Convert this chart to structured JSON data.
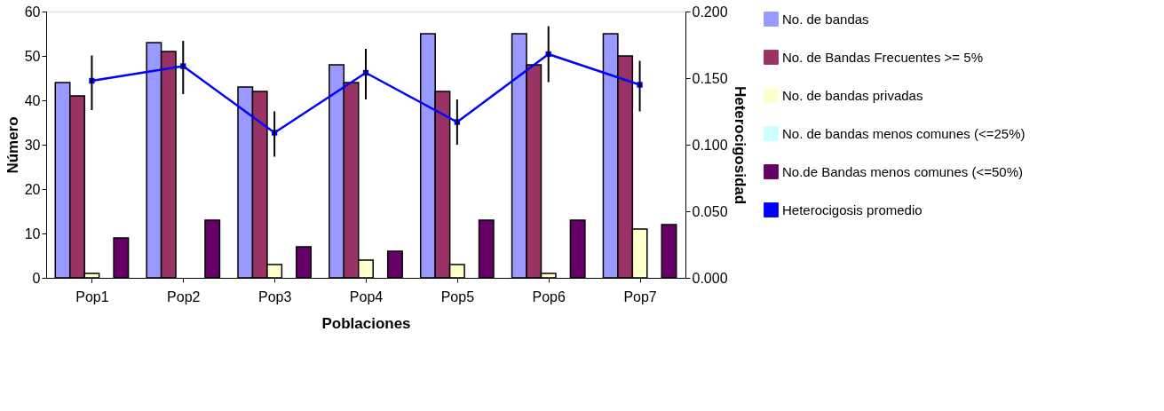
{
  "chart_data": {
    "type": "bar",
    "xlabel": "Poblaciones",
    "ylabel": "Número",
    "y2label": "Heterocigosidad",
    "categories": [
      "Pop1",
      "Pop2",
      "Pop3",
      "Pop4",
      "Pop5",
      "Pop6",
      "Pop7"
    ],
    "series": [
      {
        "name": "No. de bandas",
        "color": "#9999ff",
        "values": [
          44,
          53,
          43,
          48,
          55,
          55,
          55
        ]
      },
      {
        "name": "No.  de  Bandas Frecuentes >= 5%",
        "color": "#993366",
        "values": [
          41,
          51,
          42,
          44,
          42,
          48,
          50
        ]
      },
      {
        "name": "No. de bandas privadas",
        "color": "#ffffcc",
        "values": [
          1,
          0,
          3,
          4,
          3,
          1,
          11
        ]
      },
      {
        "name": "No. de bandas menos comunes (<=25%)",
        "color": "#ccffff",
        "values": [
          0,
          0,
          0,
          0,
          0,
          0,
          0
        ]
      },
      {
        "name": "No.de Bandas menos comunes (<=50%)",
        "color": "#660066",
        "values": [
          9,
          13,
          7,
          6,
          13,
          13,
          12
        ]
      },
      {
        "name": "Heterocigosis promedio",
        "color": "#0000ff",
        "type": "line",
        "axis": "y2",
        "marker": "square",
        "values": [
          0.148,
          0.159,
          0.109,
          0.154,
          0.117,
          0.168,
          0.145
        ],
        "errors": [
          [
            0.126,
            0.167
          ],
          [
            0.138,
            0.178
          ],
          [
            0.091,
            0.125
          ],
          [
            0.134,
            0.172
          ],
          [
            0.1,
            0.134
          ],
          [
            0.147,
            0.189
          ],
          [
            0.125,
            0.163
          ]
        ]
      }
    ],
    "ylim": [
      0,
      60
    ],
    "yticks": [
      0,
      10,
      20,
      30,
      40,
      50,
      60
    ],
    "y2lim": [
      0,
      0.2
    ],
    "y2ticks": [
      {
        "value": 0,
        "label": "0.000"
      },
      {
        "value": 0.05,
        "label": "0.050"
      },
      {
        "value": 0.1,
        "label": "0.100"
      },
      {
        "value": 0.15,
        "label": "0.150"
      },
      {
        "value": 0.2,
        "label": "0.200"
      }
    ],
    "grid": false,
    "legend": "right"
  }
}
